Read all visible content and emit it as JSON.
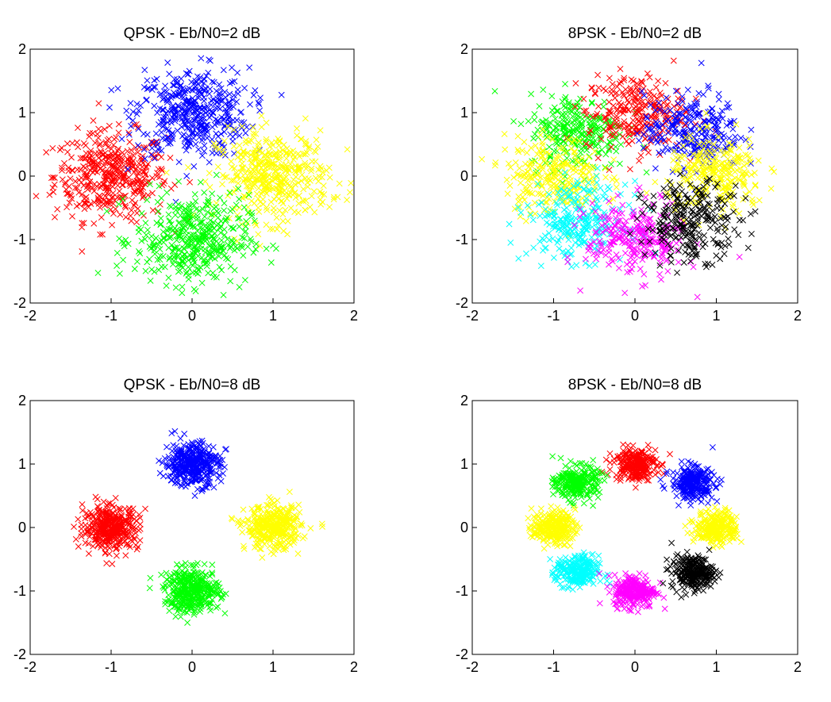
{
  "figure": {
    "colors": {
      "background": "#ffffff",
      "axes": "#000000",
      "red": "#ff0000",
      "blue": "#0000ff",
      "yellow": "#ffff00",
      "green": "#00ff00",
      "cyan": "#00ffff",
      "magenta": "#ff00ff",
      "black": "#000000"
    }
  },
  "chart_data": [
    {
      "type": "scatter",
      "title": "QPSK - Eb/N0=2 dB",
      "xlim": [
        -2,
        2
      ],
      "ylim": [
        -2,
        2
      ],
      "xticks": [
        "-2",
        "-1",
        "0",
        "1",
        "2"
      ],
      "yticks": [
        "-2",
        "-1",
        "0",
        "1",
        "2"
      ],
      "marker": "x",
      "grid": false,
      "noise_sigma": 0.35,
      "series": [
        {
          "color": "#ff0000",
          "center": [
            -1,
            0
          ]
        },
        {
          "color": "#0000ff",
          "center": [
            0,
            1
          ]
        },
        {
          "color": "#ffff00",
          "center": [
            1,
            0
          ]
        },
        {
          "color": "#00ff00",
          "center": [
            0,
            -1
          ]
        }
      ]
    },
    {
      "type": "scatter",
      "title": "8PSK - Eb/N0=2 dB",
      "xlim": [
        -2,
        2
      ],
      "ylim": [
        -2,
        2
      ],
      "xticks": [
        "-2",
        "-1",
        "0",
        "1",
        "2"
      ],
      "yticks": [
        "-2",
        "-1",
        "0",
        "1",
        "2"
      ],
      "marker": "x",
      "grid": false,
      "noise_sigma": 0.3,
      "series": [
        {
          "color": "#00ff00",
          "center": [
            -0.707,
            0.707
          ]
        },
        {
          "color": "#ff0000",
          "center": [
            0,
            1
          ]
        },
        {
          "color": "#0000ff",
          "center": [
            0.707,
            0.707
          ]
        },
        {
          "color": "#ffff00",
          "center": [
            -1,
            0
          ]
        },
        {
          "color": "#ffff00",
          "center": [
            1,
            0
          ]
        },
        {
          "color": "#00ffff",
          "center": [
            -0.707,
            -0.707
          ]
        },
        {
          "color": "#ff00ff",
          "center": [
            0,
            -1
          ]
        },
        {
          "color": "#000000",
          "center": [
            0.707,
            -0.707
          ]
        }
      ]
    },
    {
      "type": "scatter",
      "title": "QPSK - Eb/N0=8 dB",
      "xlim": [
        -2,
        2
      ],
      "ylim": [
        -2,
        2
      ],
      "xticks": [
        "-2",
        "-1",
        "0",
        "1",
        "2"
      ],
      "yticks": [
        "-2",
        "-1",
        "0",
        "1",
        "2"
      ],
      "marker": "x",
      "grid": false,
      "noise_sigma": 0.17,
      "series": [
        {
          "color": "#0000ff",
          "center": [
            0,
            1
          ]
        },
        {
          "color": "#ff0000",
          "center": [
            -1,
            0
          ]
        },
        {
          "color": "#ffff00",
          "center": [
            1,
            0
          ]
        },
        {
          "color": "#00ff00",
          "center": [
            0,
            -1
          ]
        }
      ]
    },
    {
      "type": "scatter",
      "title": "8PSK - Eb/N0=8 dB",
      "xlim": [
        -2,
        2
      ],
      "ylim": [
        -2,
        2
      ],
      "xticks": [
        "-2",
        "-1",
        "0",
        "1",
        "2"
      ],
      "yticks": [
        "-2",
        "-1",
        "0",
        "1",
        "2"
      ],
      "marker": "x",
      "grid": false,
      "noise_sigma": 0.13,
      "series": [
        {
          "color": "#ff0000",
          "center": [
            0,
            1
          ]
        },
        {
          "color": "#00ff00",
          "center": [
            -0.707,
            0.707
          ]
        },
        {
          "color": "#0000ff",
          "center": [
            0.707,
            0.707
          ]
        },
        {
          "color": "#ffff00",
          "center": [
            -1,
            0
          ]
        },
        {
          "color": "#ffff00",
          "center": [
            1,
            0
          ]
        },
        {
          "color": "#00ffff",
          "center": [
            -0.707,
            -0.707
          ]
        },
        {
          "color": "#ff00ff",
          "center": [
            0,
            -1
          ]
        },
        {
          "color": "#000000",
          "center": [
            0.707,
            -0.707
          ]
        }
      ]
    }
  ]
}
